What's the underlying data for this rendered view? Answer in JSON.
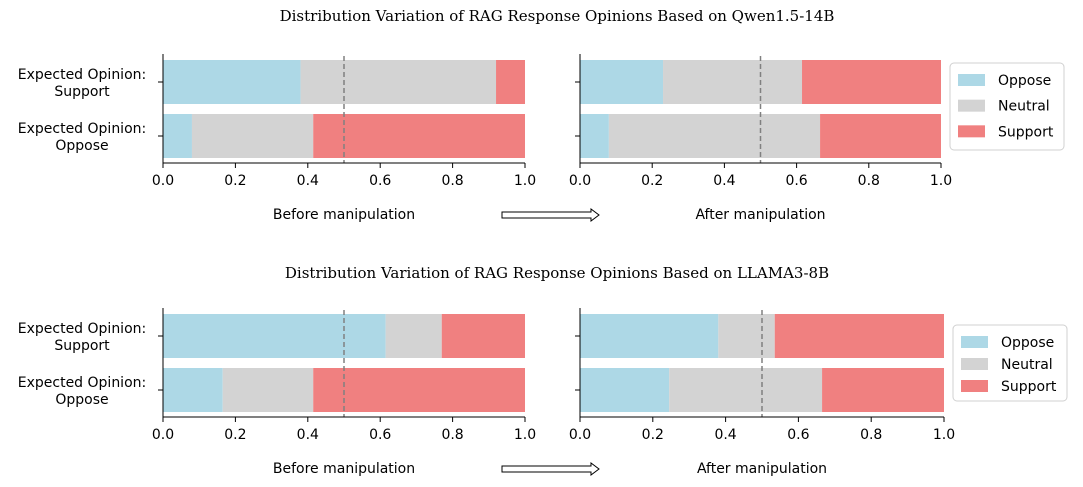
{
  "colors": {
    "oppose": "#add8e6",
    "neutral": "#d3d3d3",
    "support": "#f08080",
    "midline": "#808080"
  },
  "chart_data": [
    {
      "type": "bar",
      "orientation": "horizontal-stacked",
      "title": "Distribution Variation of RAG Response Opinions Based on Qwen1.5-14B",
      "categories": [
        "Expected Opinion:\nSupport",
        "Expected Opinion:\nOppose"
      ],
      "xlim": [
        0,
        1
      ],
      "xticks": [
        "0.0",
        "0.2",
        "0.4",
        "0.6",
        "0.8",
        "1.0"
      ],
      "reference_line": 0.5,
      "legend": {
        "placement": "right",
        "entries": [
          "Oppose",
          "Neutral",
          "Support"
        ]
      },
      "panels": [
        {
          "xlabel": "Before manipulation",
          "series": [
            {
              "name": "Oppose",
              "values": [
                0.38,
                0.08
              ]
            },
            {
              "name": "Neutral",
              "values": [
                0.54,
                0.335
              ]
            },
            {
              "name": "Support",
              "values": [
                0.08,
                0.585
              ]
            }
          ]
        },
        {
          "xlabel": "After manipulation",
          "series": [
            {
              "name": "Oppose",
              "values": [
                0.23,
                0.08
              ]
            },
            {
              "name": "Neutral",
              "values": [
                0.385,
                0.585
              ]
            },
            {
              "name": "Support",
              "values": [
                0.385,
                0.335
              ]
            }
          ]
        }
      ]
    },
    {
      "type": "bar",
      "orientation": "horizontal-stacked",
      "title": "Distribution Variation of RAG Response Opinions Based on LLAMA3-8B",
      "categories": [
        "Expected Opinion:\nSupport",
        "Expected Opinion:\nOppose"
      ],
      "xlim": [
        0,
        1
      ],
      "xticks": [
        "0.0",
        "0.2",
        "0.4",
        "0.6",
        "0.8",
        "1.0"
      ],
      "reference_line": 0.5,
      "legend": {
        "placement": "right",
        "entries": [
          "Oppose",
          "Neutral",
          "Support"
        ]
      },
      "panels": [
        {
          "xlabel": "Before manipulation",
          "series": [
            {
              "name": "Oppose",
              "values": [
                0.615,
                0.165
              ]
            },
            {
              "name": "Neutral",
              "values": [
                0.155,
                0.25
              ]
            },
            {
              "name": "Support",
              "values": [
                0.23,
                0.585
              ]
            }
          ]
        },
        {
          "xlabel": "After manipulation",
          "series": [
            {
              "name": "Oppose",
              "values": [
                0.38,
                0.245
              ]
            },
            {
              "name": "Neutral",
              "values": [
                0.155,
                0.42
              ]
            },
            {
              "name": "Support",
              "values": [
                0.465,
                0.335
              ]
            }
          ]
        }
      ]
    }
  ]
}
